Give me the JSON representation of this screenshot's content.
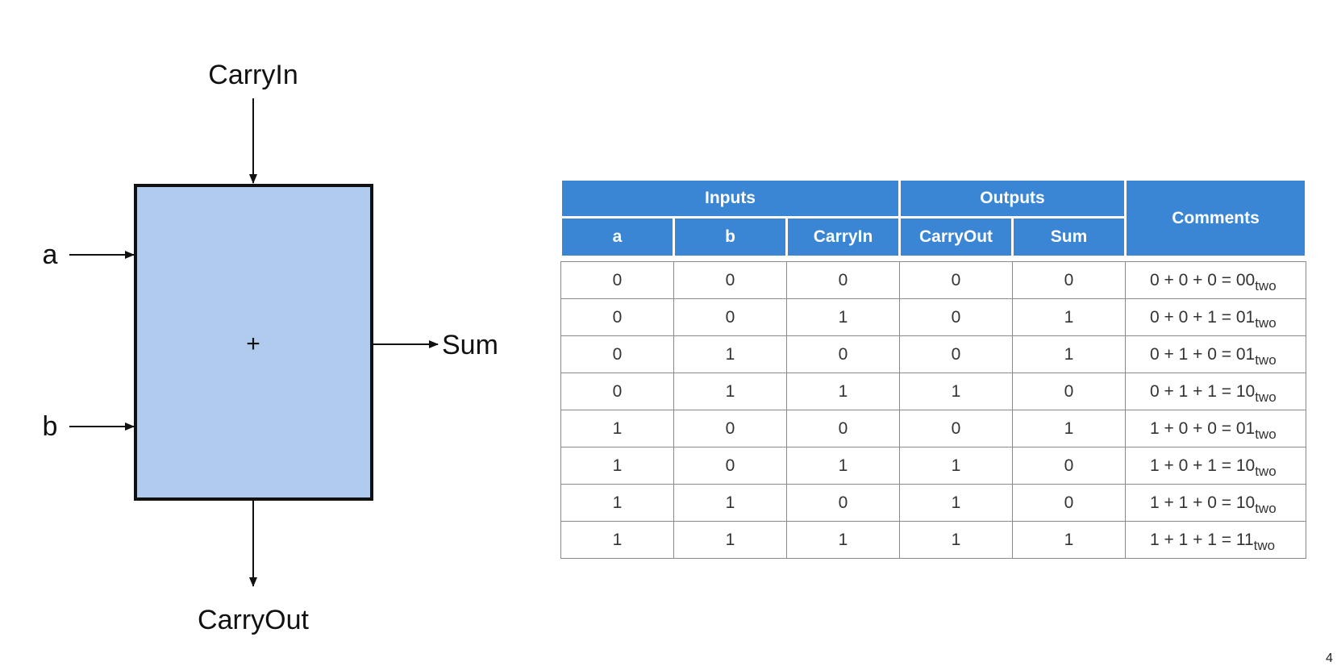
{
  "diagram": {
    "box_color": "#b0cbee",
    "box_border": "#111111",
    "labels": {
      "carry_in": "CarryIn",
      "carry_out": "CarryOut",
      "a": "a",
      "b": "b",
      "sum": "Sum",
      "operator": "+"
    }
  },
  "table": {
    "header_color": "#3a86d4",
    "group_headers": {
      "inputs": "Inputs",
      "outputs": "Outputs",
      "comments": "Comments"
    },
    "columns": [
      "a",
      "b",
      "CarryIn",
      "CarryOut",
      "Sum"
    ],
    "rows": [
      {
        "a": "0",
        "b": "0",
        "carry_in": "0",
        "carry_out": "0",
        "sum": "0",
        "comment": "0 + 0 + 0 = 00",
        "base": "two"
      },
      {
        "a": "0",
        "b": "0",
        "carry_in": "1",
        "carry_out": "0",
        "sum": "1",
        "comment": "0 + 0 + 1 = 01",
        "base": "two"
      },
      {
        "a": "0",
        "b": "1",
        "carry_in": "0",
        "carry_out": "0",
        "sum": "1",
        "comment": "0 + 1 + 0 = 01",
        "base": "two"
      },
      {
        "a": "0",
        "b": "1",
        "carry_in": "1",
        "carry_out": "1",
        "sum": "0",
        "comment": "0 + 1 + 1 = 10",
        "base": "two"
      },
      {
        "a": "1",
        "b": "0",
        "carry_in": "0",
        "carry_out": "0",
        "sum": "1",
        "comment": "1 + 0 + 0 = 01",
        "base": "two"
      },
      {
        "a": "1",
        "b": "0",
        "carry_in": "1",
        "carry_out": "1",
        "sum": "0",
        "comment": "1 + 0 + 1 = 10",
        "base": "two"
      },
      {
        "a": "1",
        "b": "1",
        "carry_in": "0",
        "carry_out": "1",
        "sum": "0",
        "comment": "1 + 1 + 0 = 10",
        "base": "two"
      },
      {
        "a": "1",
        "b": "1",
        "carry_in": "1",
        "carry_out": "1",
        "sum": "1",
        "comment": "1 + 1 + 1 = 11",
        "base": "two"
      }
    ]
  },
  "page_mark": "4"
}
